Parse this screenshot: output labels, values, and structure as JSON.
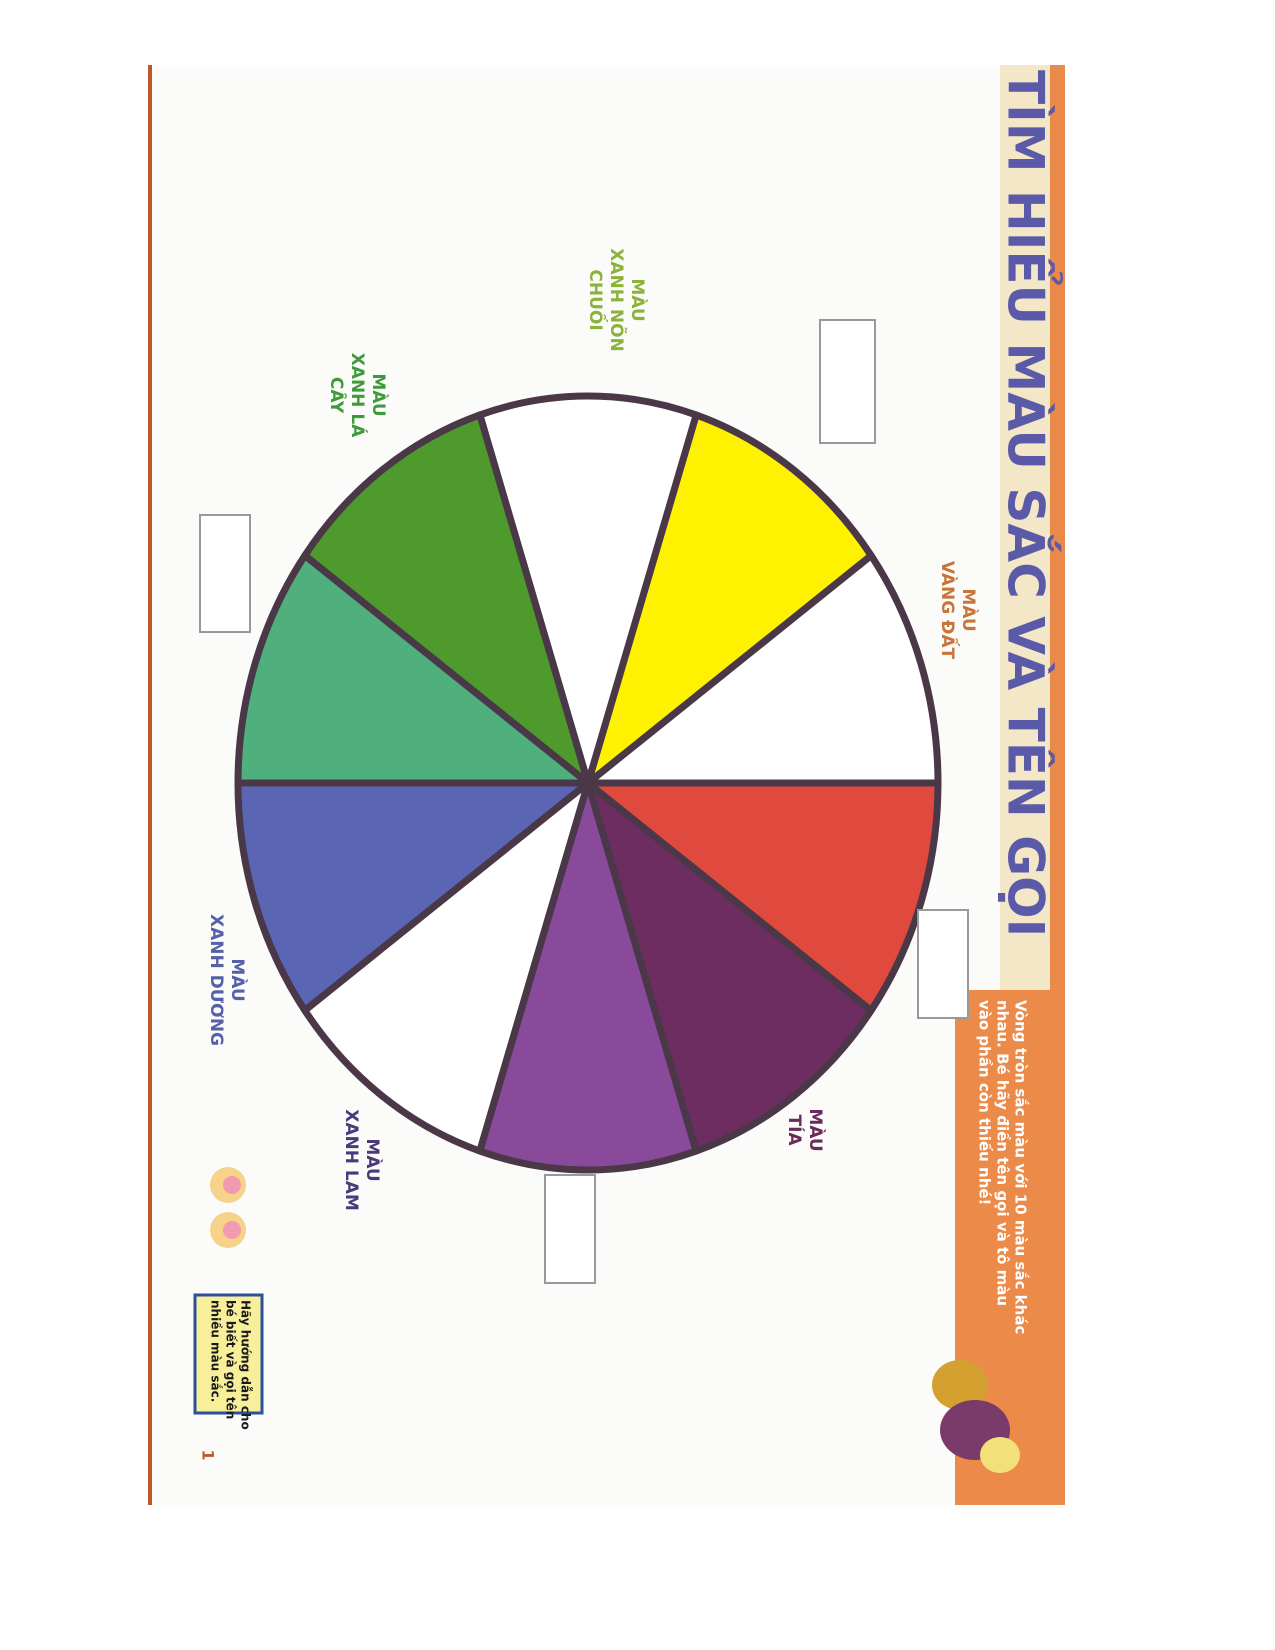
{
  "header": {
    "title": "TÌM HIỂU MÀU SẮC VÀ TÊN GỌI"
  },
  "instruction": {
    "lines": [
      "Vòng tròn sắc màu với 10 màu sắc khác",
      "nhau. Bé hãy điền tên gọi và tô màu",
      "vào phần còn thiếu nhé!"
    ]
  },
  "labels": [
    {
      "lines": [
        "MÀU",
        "VÀNG ĐẤT"
      ]
    },
    {
      "lines": [
        "MÀU",
        "XANH NÕN",
        "CHUỐI"
      ]
    },
    {
      "lines": [
        "MÀU",
        "XANH LÁ",
        "CÂY"
      ]
    },
    {
      "lines": [
        "MÀU",
        "XANH DƯƠNG"
      ]
    },
    {
      "lines": [
        "MÀU",
        "XANH LAM"
      ]
    },
    {
      "lines": [
        "MÀU",
        "TÍA"
      ]
    }
  ],
  "note": {
    "lines": [
      "Hãy hướng dẫn cho",
      "bé biết và gọi tên",
      "nhiều màu sắc."
    ]
  },
  "page_number": "1"
}
